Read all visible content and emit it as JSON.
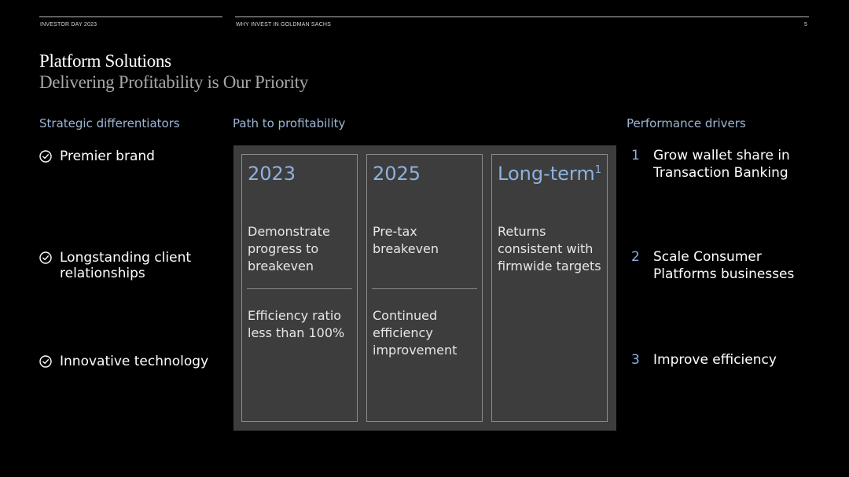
{
  "header": {
    "left": "INVESTOR DAY 2023",
    "center": "WHY INVEST IN GOLDMAN SACHS",
    "page_number": "5"
  },
  "title": "Platform Solutions",
  "subtitle": "Delivering Profitability is Our Priority",
  "differentiators": {
    "heading": "Strategic differentiators",
    "icon": "check-circle-icon",
    "items": [
      "Premier brand",
      "Longstanding client relationships",
      "Innovative technology"
    ]
  },
  "path": {
    "heading": "Path to profitability",
    "cards": [
      {
        "year": "2023",
        "footnote": "",
        "goal": "Demonstrate progress to breakeven",
        "metric": "Efficiency ratio less than 100%"
      },
      {
        "year": "2025",
        "footnote": "",
        "goal": "Pre-tax breakeven",
        "metric": "Continued efficiency improvement"
      },
      {
        "year": "Long-term",
        "footnote": "1",
        "goal": "Returns consistent with firmwide targets",
        "metric": ""
      }
    ]
  },
  "drivers": {
    "heading": "Performance drivers",
    "items": [
      {
        "num": "1",
        "text": "Grow wallet share in Transaction Banking"
      },
      {
        "num": "2",
        "text": "Scale Consumer Platforms businesses"
      },
      {
        "num": "3",
        "text": "Improve efficiency"
      }
    ]
  },
  "colors": {
    "background": "#000000",
    "accent": "#8fb1de",
    "panel": "#3d3d3d"
  }
}
